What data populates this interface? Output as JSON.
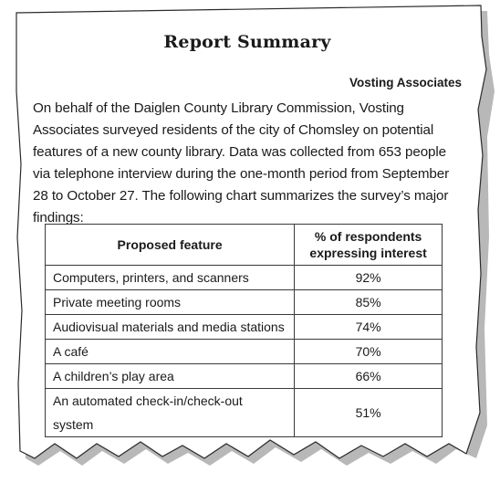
{
  "document": {
    "title": "Report Summary",
    "author": "Vosting Associates",
    "paragraph": "On behalf of the Daiglen County Library Commission, Vosting Associates surveyed residents of the city of Chomsley on potential features of a new county library.  Data was collected from 653 people via telephone interview during the one-month period from September 28 to October 27. The following chart summarizes the survey’s major findings:"
  },
  "table": {
    "headers": {
      "feature": "Proposed feature",
      "percent_line1": "% of respondents",
      "percent_line2": "expressing interest"
    },
    "rows": [
      {
        "feature": "Computers, printers, and scanners",
        "percent": "92%"
      },
      {
        "feature": "Private meeting rooms",
        "percent": "85%"
      },
      {
        "feature": "Audiovisual materials and media stations",
        "percent": "74%"
      },
      {
        "feature": "A café",
        "percent": "70%"
      },
      {
        "feature": "A children’s play area",
        "percent": "66%"
      },
      {
        "feature": "An automated check-in/check-out system",
        "percent": "51%"
      }
    ]
  }
}
